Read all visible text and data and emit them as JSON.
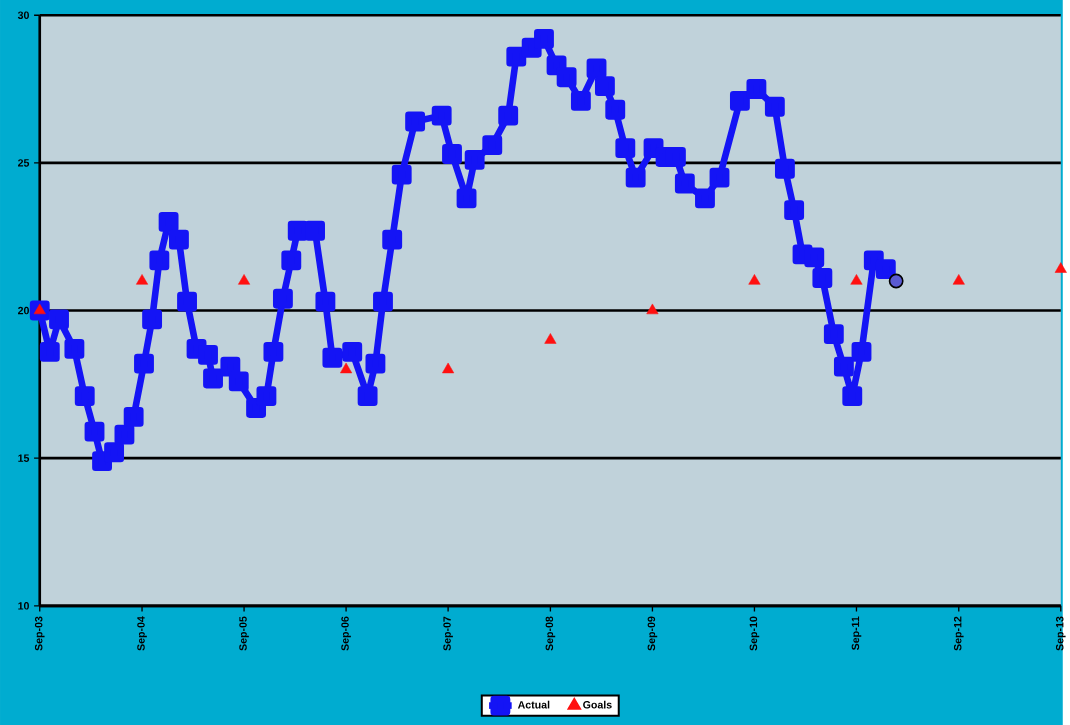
{
  "chart_data": {
    "type": "line",
    "xlim": [
      "2003-09-01",
      "2013-09-01"
    ],
    "xticks": [
      {
        "value": "2003-09-01",
        "label": "Sep-03"
      },
      {
        "value": "2004-09-01",
        "label": "Sep-04"
      },
      {
        "value": "2005-09-01",
        "label": "Sep-05"
      },
      {
        "value": "2006-09-01",
        "label": "Sep-06"
      },
      {
        "value": "2007-09-01",
        "label": "Sep-07"
      },
      {
        "value": "2008-09-01",
        "label": "Sep-08"
      },
      {
        "value": "2009-09-01",
        "label": "Sep-09"
      },
      {
        "value": "2010-09-01",
        "label": "Sep-10"
      },
      {
        "value": "2011-09-01",
        "label": "Sep-11"
      },
      {
        "value": "2012-09-01",
        "label": "Sep-12"
      },
      {
        "value": "2013-09-01",
        "label": "Sep-13"
      }
    ],
    "ylim": [
      10,
      30
    ],
    "yticks": [
      10,
      15,
      20,
      25,
      30
    ],
    "grid": "y",
    "legend": "bottom",
    "line_style": "solid",
    "series": [
      {
        "name": "Actual",
        "color": "#1414f5",
        "marker": "square",
        "x": [
          "2003-09-01",
          "2003-10-07",
          "2003-11-09",
          "2004-01-03",
          "2004-02-09",
          "2004-03-15",
          "2004-04-11",
          "2004-05-24",
          "2004-06-30",
          "2004-08-02",
          "2004-09-08",
          "2004-10-07",
          "2004-11-02",
          "2004-12-05",
          "2005-01-11",
          "2005-02-09",
          "2005-03-15",
          "2005-04-25",
          "2005-05-13",
          "2005-07-14",
          "2005-08-13",
          "2005-10-14",
          "2005-11-20",
          "2005-12-15",
          "2006-01-18",
          "2006-02-17",
          "2006-03-12",
          "2006-05-13",
          "2006-06-19",
          "2006-07-14",
          "2006-09-23",
          "2006-11-17",
          "2006-12-15",
          "2007-01-11",
          "2007-02-13",
          "2007-03-19",
          "2007-05-06",
          "2007-08-09",
          "2007-09-15",
          "2007-11-06",
          "2007-12-05",
          "2008-02-06",
          "2008-04-03",
          "2008-05-02",
          "2008-06-26",
          "2008-08-09",
          "2008-09-23",
          "2008-10-29",
          "2008-12-19",
          "2009-02-13",
          "2009-03-15",
          "2009-04-21",
          "2009-05-27",
          "2009-07-03",
          "2009-09-05",
          "2009-10-18",
          "2009-11-24",
          "2009-12-26",
          "2010-03-08",
          "2010-04-29",
          "2010-07-11",
          "2010-09-08",
          "2010-11-13",
          "2010-12-19",
          "2011-01-21",
          "2011-02-20",
          "2011-04-03",
          "2011-05-02",
          "2011-06-12",
          "2011-07-18",
          "2011-08-17",
          "2011-09-19",
          "2011-11-02",
          "2011-12-15"
        ],
        "values": [
          20.0,
          18.6,
          19.7,
          18.7,
          17.1,
          15.9,
          14.9,
          15.2,
          15.8,
          16.4,
          18.2,
          19.7,
          21.7,
          23.0,
          22.4,
          20.3,
          18.7,
          18.5,
          17.7,
          18.1,
          17.6,
          16.7,
          17.1,
          18.6,
          20.4,
          21.7,
          22.7,
          22.7,
          20.3,
          18.4,
          18.6,
          17.1,
          18.2,
          20.3,
          22.4,
          24.6,
          26.4,
          26.6,
          25.3,
          23.8,
          25.1,
          25.6,
          26.6,
          28.6,
          28.9,
          29.2,
          28.3,
          27.9,
          27.1,
          28.2,
          27.6,
          26.8,
          25.5,
          24.5,
          25.5,
          25.2,
          25.2,
          24.3,
          23.8,
          24.5,
          27.1,
          27.5,
          26.9,
          24.8,
          23.4,
          21.9,
          21.8,
          21.1,
          19.2,
          18.1,
          17.1,
          18.6,
          21.7,
          21.4
        ]
      },
      {
        "name": "Goals",
        "color": "#ff1010",
        "type": "scatter",
        "marker": "triangle",
        "x": [
          "2003-09-01",
          "2004-09-01",
          "2005-09-01",
          "2006-09-01",
          "2007-09-01",
          "2008-09-01",
          "2009-09-01",
          "2010-09-01",
          "2011-09-01",
          "2012-09-01",
          "2013-09-01"
        ],
        "values": [
          20,
          21,
          21,
          18,
          18,
          19,
          20,
          21,
          21,
          21,
          21.4
        ]
      },
      {
        "color": "#5a5ad2",
        "type": "scatter",
        "marker": "circle",
        "x": [
          "2012-01-21"
        ],
        "values": [
          21.0
        ]
      }
    ]
  }
}
